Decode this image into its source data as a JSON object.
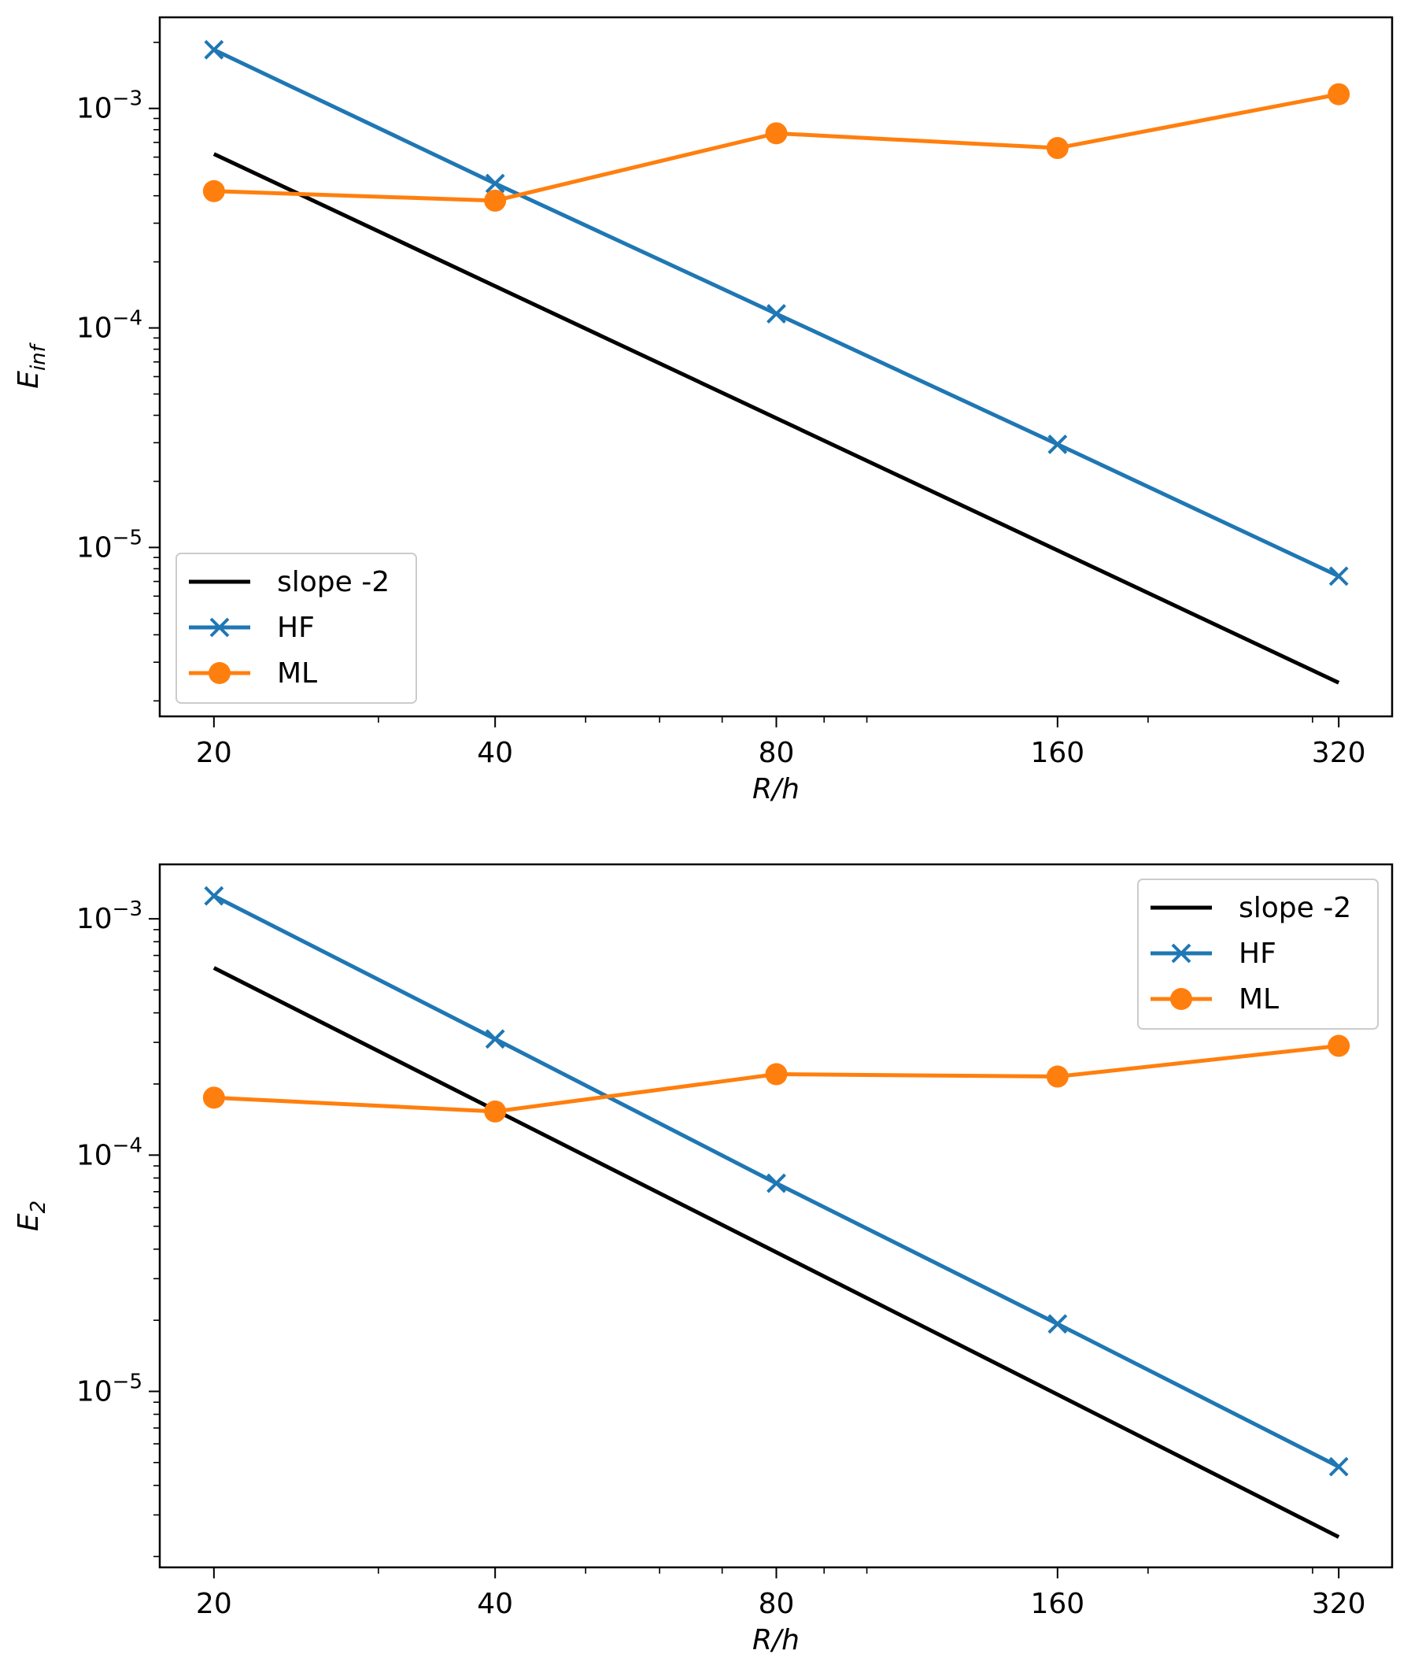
{
  "chart_data": [
    {
      "type": "line",
      "xscale": "log2",
      "yscale": "log10",
      "x": [
        20,
        40,
        80,
        160,
        320
      ],
      "xlabel": "R/h",
      "ylabel": "E",
      "ylabel_sub": "inf",
      "xticks": [
        "20",
        "40",
        "80",
        "160",
        "320"
      ],
      "yticks": [
        {
          "base": "10",
          "exp": "−3",
          "value": 0.001
        },
        {
          "base": "10",
          "exp": "−4",
          "value": 0.0001
        },
        {
          "base": "10",
          "exp": "−5",
          "value": 1e-05
        }
      ],
      "xlim": [
        17.5,
        365
      ],
      "ylim": [
        1.7e-06,
        0.0026
      ],
      "legend_position": "lower-left",
      "series": [
        {
          "name": "slope -2",
          "color": "#000000",
          "marker": "none",
          "values": [
            0.00062,
            0.000155,
            3.88e-05,
            9.7e-06,
            2.42e-06
          ]
        },
        {
          "name": "HF",
          "color": "#1f77b4",
          "marker": "x",
          "values": [
            0.00185,
            0.000455,
            0.000116,
            2.95e-05,
            7.4e-06
          ]
        },
        {
          "name": "ML",
          "color": "#ff7f0e",
          "marker": "circle",
          "values": [
            0.00042,
            0.00038,
            0.00077,
            0.00066,
            0.00116
          ]
        }
      ]
    },
    {
      "type": "line",
      "xscale": "log2",
      "yscale": "log10",
      "x": [
        20,
        40,
        80,
        160,
        320
      ],
      "xlabel": "R/h",
      "ylabel": "E",
      "ylabel_sub": "2",
      "xticks": [
        "20",
        "40",
        "80",
        "160",
        "320"
      ],
      "yticks": [
        {
          "base": "10",
          "exp": "−3",
          "value": 0.001
        },
        {
          "base": "10",
          "exp": "−4",
          "value": 0.0001
        },
        {
          "base": "10",
          "exp": "−5",
          "value": 1e-05
        }
      ],
      "xlim": [
        17.5,
        365
      ],
      "ylim": [
        1.8e-06,
        0.0017
      ],
      "legend_position": "upper-right",
      "series": [
        {
          "name": "slope -2",
          "color": "#000000",
          "marker": "none",
          "values": [
            0.00062,
            0.000155,
            3.88e-05,
            9.7e-06,
            2.42e-06
          ]
        },
        {
          "name": "HF",
          "color": "#1f77b4",
          "marker": "x",
          "values": [
            0.00125,
            0.00031,
            7.6e-05,
            1.93e-05,
            4.8e-06
          ]
        },
        {
          "name": "ML",
          "color": "#ff7f0e",
          "marker": "circle",
          "values": [
            0.000175,
            0.000153,
            0.00022,
            0.000215,
            0.00029
          ]
        }
      ]
    }
  ]
}
